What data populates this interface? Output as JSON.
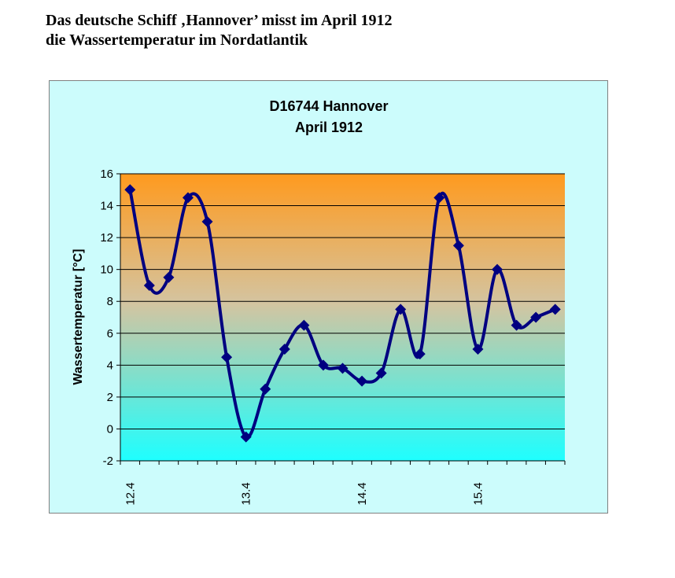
{
  "heading": {
    "line1": "Das deutsche Schiff ‚Hannover’ misst im April 1912",
    "line2": "die Wassertemperatur im Nordatlantik"
  },
  "chart_data": {
    "type": "line",
    "title": [
      "D16744 Hannover",
      "April 1912"
    ],
    "xlabel": "",
    "ylabel": "Wassertemperatur [°C]",
    "ylim": [
      -2,
      16
    ],
    "yticks": [
      -2,
      0,
      2,
      4,
      6,
      8,
      10,
      12,
      14,
      16
    ],
    "grid": true,
    "smoothed": true,
    "marker": "diamond",
    "categories": [
      "12.4",
      "",
      "",
      "",
      "",
      "",
      "13.4",
      "",
      "",
      "",
      "",
      "",
      "14.4",
      "",
      "",
      "",
      "",
      "",
      "15.4",
      "",
      "",
      "",
      ""
    ],
    "values": [
      15,
      9,
      9.5,
      14.5,
      13,
      4.5,
      -0.5,
      2.5,
      5,
      6.5,
      4,
      3.8,
      3,
      3.5,
      7.5,
      4.7,
      14.5,
      11.5,
      5,
      10,
      6.5,
      7,
      7.5
    ],
    "colors": {
      "line": "#000080",
      "background_top": "#ff9a1e",
      "background_bottom": "#1effff",
      "chart_area": "#ccfcfc"
    }
  }
}
